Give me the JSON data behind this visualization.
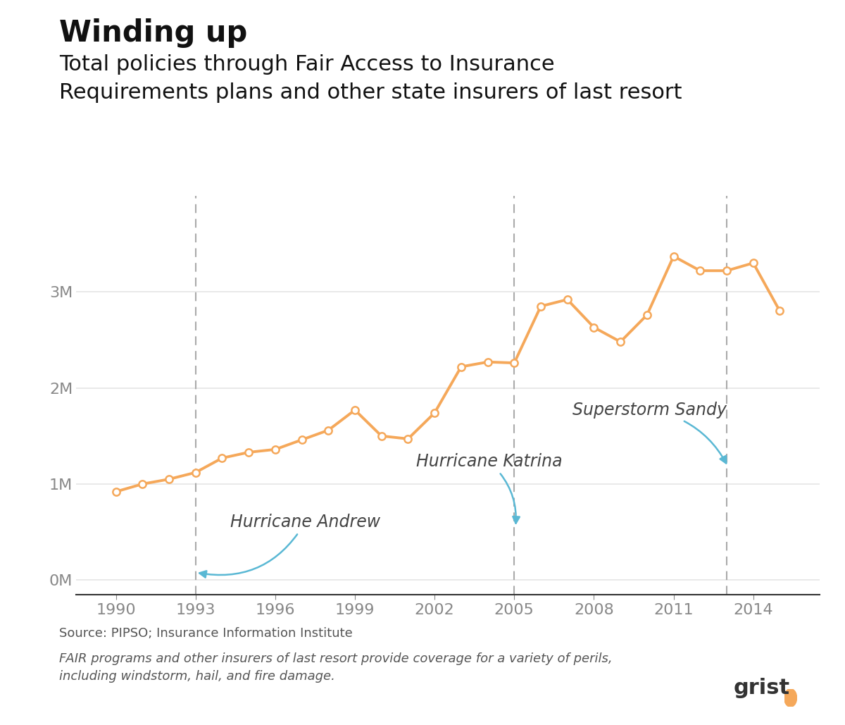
{
  "title_bold": "Winding up",
  "subtitle": "Total policies through Fair Access to Insurance\nRequirements plans and other state insurers of last resort",
  "source_text": "Source: PIPSO; Insurance Information Institute",
  "footnote_text": "FAIR programs and other insurers of last resort provide coverage for a variety of perils,\nincluding windstorm, hail, and fire damage.",
  "grist_text": "grist",
  "years": [
    1990,
    1991,
    1992,
    1993,
    1994,
    1995,
    1996,
    1997,
    1998,
    1999,
    2000,
    2001,
    2002,
    2003,
    2004,
    2005,
    2006,
    2007,
    2008,
    2009,
    2010,
    2011,
    2012,
    2013,
    2014,
    2015
  ],
  "values": [
    0.92,
    1.0,
    1.05,
    1.12,
    1.27,
    1.33,
    1.36,
    1.46,
    1.56,
    1.77,
    1.5,
    1.47,
    1.74,
    2.22,
    2.27,
    2.26,
    2.85,
    2.92,
    2.63,
    2.48,
    2.76,
    3.37,
    3.22,
    3.22,
    3.3,
    2.8
  ],
  "line_color": "#F5A85A",
  "marker_face": "#ffffff",
  "marker_edge": "#F5A85A",
  "vline_color": "#aaaaaa",
  "vline_years": [
    1993,
    2005,
    2013
  ],
  "annotation_color": "#5ab8d4",
  "xlim": [
    1988.5,
    2016.5
  ],
  "ylim": [
    -0.15,
    4.0
  ],
  "xticks": [
    1990,
    1993,
    1996,
    1999,
    2002,
    2005,
    2008,
    2011,
    2014
  ],
  "yticks": [
    0,
    1,
    2,
    3
  ],
  "ytick_labels": [
    "0M",
    "1M",
    "2M",
    "3M"
  ],
  "background_color": "#ffffff",
  "grid_color": "#e5e5e5",
  "title_fontsize": 30,
  "subtitle_fontsize": 22,
  "axis_tick_fontsize": 16,
  "annotation_fontsize": 17,
  "source_fontsize": 13,
  "text_color": "#444444",
  "tick_color": "#888888",
  "grist_dot_color": "#F5A85A"
}
